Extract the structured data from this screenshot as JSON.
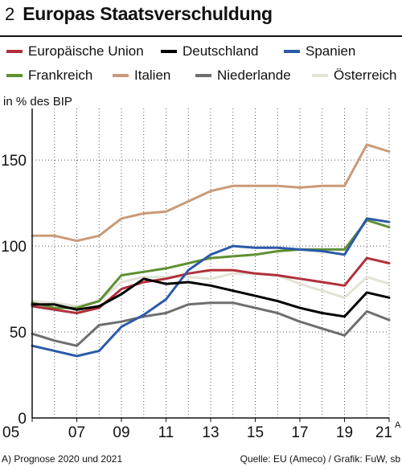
{
  "header": {
    "number": "2",
    "title": "Europas Staatsverschuldung"
  },
  "footnote": "A) Prognose 2020 und 2021",
  "source": "Quelle: EU (Ameco) / Grafik: FuW, sb",
  "chart_data": {
    "type": "line",
    "title": "Europas Staatsverschuldung",
    "ylabel": "in % des BIP",
    "xlabel": "",
    "ylim": [
      0,
      180
    ],
    "yticks": [
      0,
      50,
      100,
      150
    ],
    "x": [
      2005,
      2006,
      2007,
      2008,
      2009,
      2010,
      2011,
      2012,
      2013,
      2014,
      2015,
      2016,
      2017,
      2018,
      2019,
      2020,
      2021
    ],
    "xlim": [
      2005,
      2021
    ],
    "xticks": [
      2005,
      2007,
      2009,
      2011,
      2013,
      2015,
      2017,
      2019,
      2021
    ],
    "xtick_labels": [
      "05",
      "07",
      "09",
      "11",
      "13",
      "15",
      "17",
      "19",
      "21"
    ],
    "xtick_superscript": {
      "label": "21",
      "sup": "A"
    },
    "grid": {
      "vertical": true,
      "horizontal": true
    },
    "legend_position": "top",
    "series": [
      {
        "name": "Europäische Union",
        "color": "#b0303a",
        "values": [
          65,
          63,
          61,
          64,
          75,
          79,
          81,
          84,
          86,
          86,
          84,
          83,
          81,
          79,
          77,
          93,
          90
        ]
      },
      {
        "name": "Deutschland",
        "color": "#000000",
        "values": [
          66,
          66,
          63,
          65,
          72,
          81,
          78,
          79,
          77,
          74,
          71,
          68,
          64,
          61,
          59,
          73,
          70
        ]
      },
      {
        "name": "Spanien",
        "color": "#2c5aa8",
        "values": [
          42,
          39,
          36,
          39,
          53,
          60,
          69,
          86,
          95,
          100,
          99,
          99,
          98,
          97,
          95,
          116,
          114
        ]
      },
      {
        "name": "Frankreich",
        "color": "#5e8f32",
        "values": [
          67,
          64,
          64,
          68,
          83,
          85,
          87,
          90,
          93,
          94,
          95,
          97,
          98,
          98,
          98,
          115,
          111
        ]
      },
      {
        "name": "Italien",
        "color": "#c99a78",
        "values": [
          106,
          106,
          103,
          106,
          116,
          119,
          120,
          126,
          132,
          135,
          135,
          135,
          134,
          135,
          135,
          159,
          155
        ]
      },
      {
        "name": "Niederlande",
        "color": "#6e6e6e",
        "values": [
          49,
          45,
          42,
          54,
          56,
          59,
          61,
          66,
          67,
          67,
          64,
          61,
          56,
          52,
          48,
          62,
          57
        ]
      },
      {
        "name": "Österreich",
        "color": "#e2e2d6",
        "values": [
          68,
          67,
          65,
          68,
          79,
          82,
          82,
          82,
          81,
          84,
          84,
          83,
          78,
          74,
          70,
          82,
          78
        ]
      }
    ]
  }
}
